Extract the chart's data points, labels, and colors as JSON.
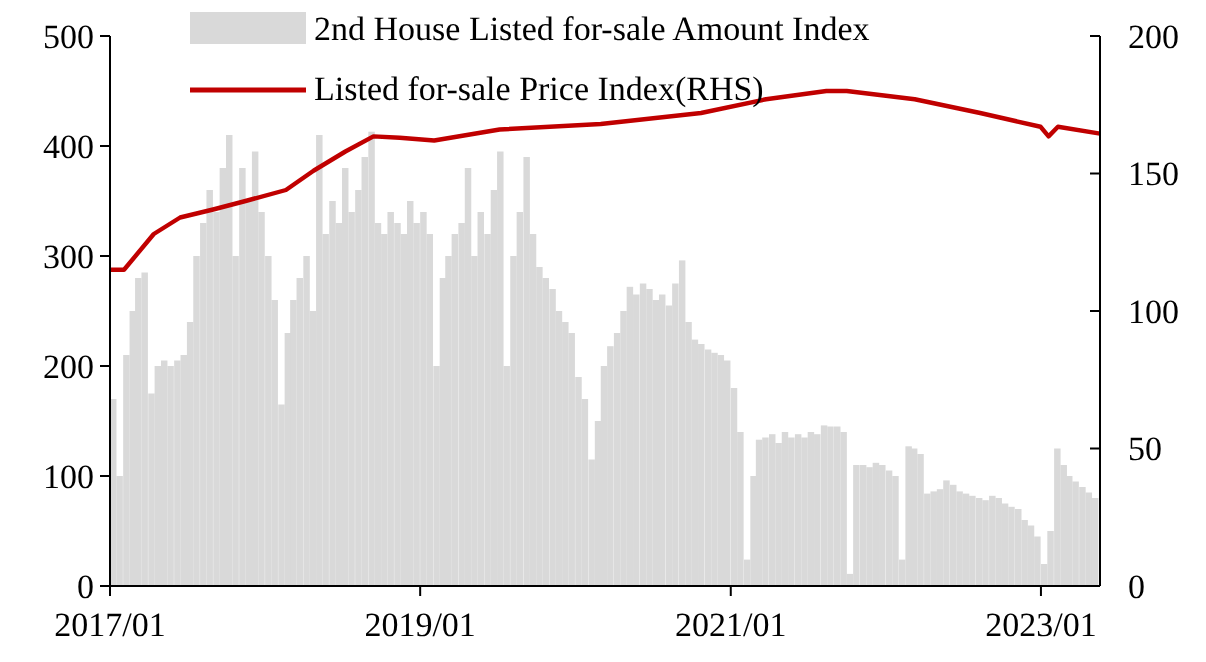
{
  "chart_data": {
    "type": "bar",
    "x": [
      "2017-01-01",
      "2017-01-16",
      "2017-02-01",
      "2017-02-16",
      "2017-03-01",
      "2017-03-16",
      "2017-04-01",
      "2017-04-16",
      "2017-05-01",
      "2017-05-16",
      "2017-06-01",
      "2017-06-16",
      "2017-07-01",
      "2017-07-16",
      "2017-08-01",
      "2017-08-16",
      "2017-09-01",
      "2017-09-16",
      "2017-10-01",
      "2017-10-16",
      "2017-11-01",
      "2017-11-16",
      "2017-12-01",
      "2017-12-16",
      "2018-01-01",
      "2018-01-16",
      "2018-02-01",
      "2018-02-16",
      "2018-03-01",
      "2018-03-16",
      "2018-04-01",
      "2018-04-16",
      "2018-05-01",
      "2018-05-16",
      "2018-06-01",
      "2018-06-16",
      "2018-07-01",
      "2018-07-16",
      "2018-08-01",
      "2018-08-16",
      "2018-09-01",
      "2018-09-16",
      "2018-10-01",
      "2018-10-16",
      "2018-11-01",
      "2018-11-16",
      "2018-12-01",
      "2018-12-16",
      "2019-01-01",
      "2019-01-16",
      "2019-02-01",
      "2019-02-16",
      "2019-03-01",
      "2019-03-16",
      "2019-04-01",
      "2019-04-16",
      "2019-05-01",
      "2019-05-16",
      "2019-06-01",
      "2019-06-16",
      "2019-07-01",
      "2019-07-16",
      "2019-08-01",
      "2019-08-16",
      "2019-09-01",
      "2019-09-16",
      "2019-10-01",
      "2019-10-16",
      "2019-11-01",
      "2019-11-16",
      "2019-12-01",
      "2019-12-16",
      "2020-01-01",
      "2020-01-16",
      "2020-02-01",
      "2020-02-16",
      "2020-03-01",
      "2020-03-16",
      "2020-04-01",
      "2020-04-16",
      "2020-05-01",
      "2020-05-16",
      "2020-06-01",
      "2020-06-16",
      "2020-07-01",
      "2020-07-16",
      "2020-08-01",
      "2020-08-16",
      "2020-09-01",
      "2020-09-16",
      "2020-10-01",
      "2020-10-16",
      "2020-11-01",
      "2020-11-16",
      "2020-12-01",
      "2020-12-16",
      "2021-01-01",
      "2021-01-16",
      "2021-02-01",
      "2021-02-16",
      "2021-03-01",
      "2021-03-16",
      "2021-04-01",
      "2021-04-16",
      "2021-05-01",
      "2021-05-16",
      "2021-06-01",
      "2021-06-16",
      "2021-07-01",
      "2021-07-16",
      "2021-08-01",
      "2021-08-16",
      "2021-09-01",
      "2021-09-16",
      "2021-10-01",
      "2021-10-16",
      "2021-11-01",
      "2021-11-16",
      "2021-12-01",
      "2021-12-16",
      "2022-01-01",
      "2022-01-16",
      "2022-02-01",
      "2022-02-16",
      "2022-03-01",
      "2022-03-16",
      "2022-04-01",
      "2022-04-16",
      "2022-05-01",
      "2022-05-16",
      "2022-06-01",
      "2022-06-16",
      "2022-07-01",
      "2022-07-16",
      "2022-08-01",
      "2022-08-16",
      "2022-09-01",
      "2022-09-16",
      "2022-10-01",
      "2022-10-16",
      "2022-11-01",
      "2022-11-16",
      "2022-12-01",
      "2022-12-16",
      "2023-01-01",
      "2023-01-16",
      "2023-02-01",
      "2023-02-16",
      "2023-03-01",
      "2023-03-16",
      "2023-04-01",
      "2023-04-16",
      "2023-05-01"
    ],
    "series": [
      {
        "name": "2nd House Listed for-sale Amount Index",
        "color": "#d9d9d9",
        "values": [
          170,
          100,
          210,
          250,
          280,
          285,
          175,
          200,
          205,
          200,
          205,
          210,
          240,
          300,
          330,
          360,
          340,
          380,
          410,
          300,
          380,
          350,
          395,
          340,
          300,
          260,
          165,
          230,
          260,
          280,
          300,
          250,
          410,
          320,
          350,
          330,
          380,
          340,
          360,
          390,
          413,
          330,
          320,
          340,
          330,
          320,
          350,
          330,
          340,
          320,
          200,
          280,
          300,
          320,
          330,
          380,
          300,
          340,
          320,
          360,
          395,
          200,
          300,
          340,
          390,
          320,
          290,
          280,
          270,
          250,
          240,
          230,
          190,
          170,
          115,
          150,
          200,
          218,
          230,
          250,
          272,
          265,
          275,
          270,
          260,
          265,
          255,
          275,
          296,
          240,
          224,
          220,
          215,
          212,
          210,
          205,
          180,
          140,
          24,
          100,
          133,
          135,
          138,
          130,
          140,
          135,
          138,
          135,
          140,
          138,
          146,
          145,
          145,
          140,
          11,
          110,
          110,
          108,
          112,
          110,
          105,
          100,
          24,
          127,
          125,
          120,
          84,
          86,
          88,
          96,
          92,
          86,
          84,
          82,
          80,
          78,
          82,
          80,
          75,
          72,
          70,
          60,
          55,
          45,
          20,
          50,
          125,
          110,
          100,
          95,
          90,
          85,
          80
        ]
      },
      {
        "name": "Listed for-sale Price Index(RHS)",
        "type": "line",
        "axis": "y2",
        "color": "#c00000",
        "x": [
          "2017-01-01",
          "2017-02-03",
          "2017-04-14",
          "2017-06-15",
          "2017-09-03",
          "2017-11-16",
          "2018-02-19",
          "2018-04-25",
          "2018-07-09",
          "2018-09-13",
          "2018-11-14",
          "2019-02-03",
          "2019-07-07",
          "2020-03-01",
          "2020-10-23",
          "2021-03-25",
          "2021-08-14",
          "2021-10-01",
          "2022-03-10",
          "2022-08-11",
          "2022-12-31",
          "2023-01-19",
          "2023-02-10",
          "2023-05-20"
        ],
        "values": [
          115,
          115,
          128,
          134,
          137,
          140,
          144,
          151,
          158,
          163.5,
          163,
          162,
          166,
          168,
          172,
          177,
          180,
          180,
          177,
          172,
          167,
          163.5,
          167,
          164.5
        ]
      }
    ],
    "xlim": [
      "2017-01-01",
      "2023-05-20"
    ],
    "xticks": [
      {
        "value": "2017-01",
        "label": "2017/01"
      },
      {
        "value": "2019-01",
        "label": "2019/01"
      },
      {
        "value": "2021-01",
        "label": "2021/01"
      },
      {
        "value": "2023-01",
        "label": "2023/01"
      }
    ],
    "ylim": [
      0,
      500
    ],
    "yticks": [
      0,
      100,
      200,
      300,
      400,
      500
    ],
    "y2lim": [
      0,
      200
    ],
    "y2ticks": [
      0,
      50,
      100,
      150,
      200
    ],
    "legend": "top left",
    "grid": false
  }
}
